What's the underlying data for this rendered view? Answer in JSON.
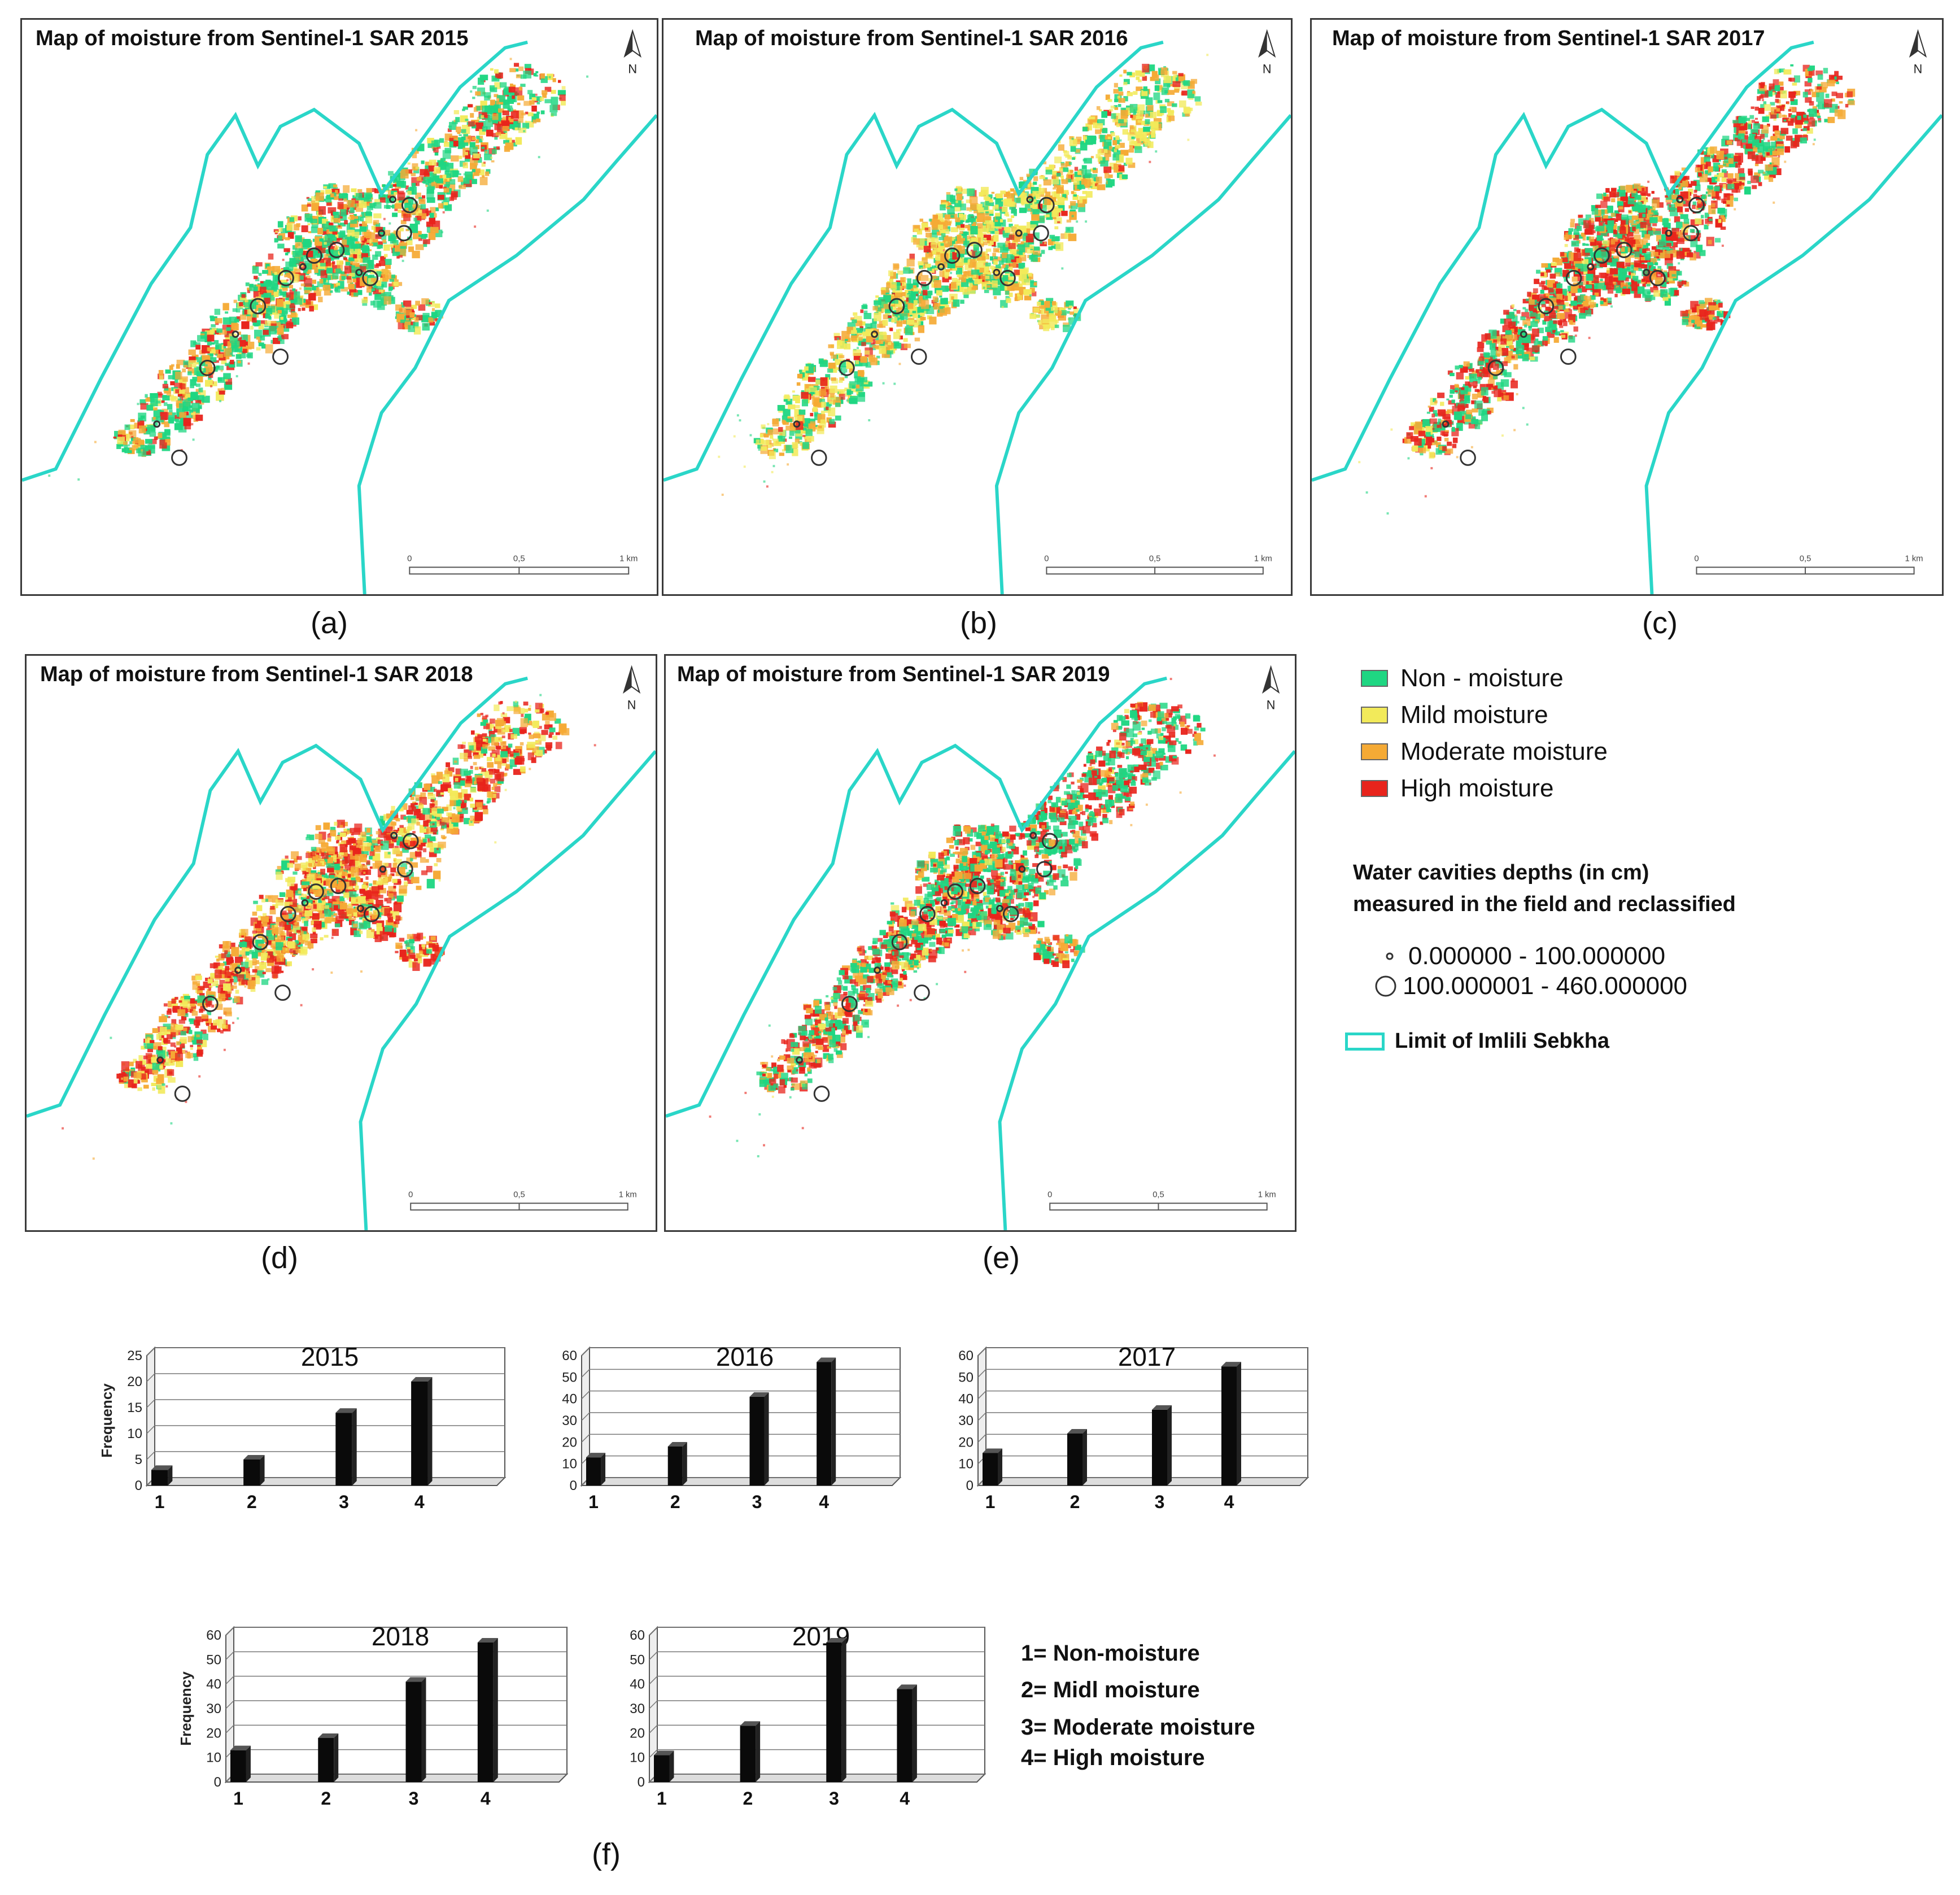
{
  "maps": [
    {
      "title": "Map of moisture from Sentinel-1 SAR 2015",
      "panel_label": "(a)",
      "year": "2015"
    },
    {
      "title": "Map of moisture from Sentinel-1 SAR 2016",
      "panel_label": "(b)",
      "year": "2016"
    },
    {
      "title": "Map of moisture from Sentinel-1 SAR 2017",
      "panel_label": "(c)",
      "year": "2017"
    },
    {
      "title": "Map of moisture from Sentinel-1 SAR 2018",
      "panel_label": "(d)",
      "year": "2018"
    },
    {
      "title": "Map of moisture from Sentinel-1 SAR 2019",
      "panel_label": "(e)",
      "year": "2019"
    }
  ],
  "north_label": "N",
  "scale": {
    "tick0": "0",
    "tick1": "0,5",
    "tick2": "1 km"
  },
  "legend": {
    "classes": [
      {
        "label": "Non - moisture",
        "color": "#1fd682"
      },
      {
        "label": "Mild moisture",
        "color": "#f2ea5a"
      },
      {
        "label": "Moderate moisture",
        "color": "#f5aa35"
      },
      {
        "label": "High moisture",
        "color": "#e8241c"
      }
    ],
    "cavities_heading_1": "Water cavities depths  (in cm)",
    "cavities_heading_2": "measured in the field and reclassified",
    "cavity_small": "0.000000 - 100.000000",
    "cavity_large": "100.000001 - 460.000000",
    "limit_label": "Limit of Imlili Sebkha",
    "limit_color": "#2ad6c8"
  },
  "colors": {
    "non": "#1fd682",
    "mild": "#f2ea5a",
    "moderate": "#f5aa35",
    "high": "#e8241c",
    "limit": "#2ad6c8"
  },
  "chart_data": [
    {
      "type": "bar",
      "title": "2015",
      "ylabel": "Frequency",
      "categories": [
        "1",
        "2",
        "3",
        "4"
      ],
      "values": [
        3,
        5,
        14,
        20
      ],
      "ylim": [
        0,
        25
      ],
      "yticks": [
        0,
        5,
        10,
        15,
        20,
        25
      ]
    },
    {
      "type": "bar",
      "title": "2016",
      "ylabel": "",
      "categories": [
        "1",
        "2",
        "3",
        "4"
      ],
      "values": [
        13,
        18,
        41,
        57
      ],
      "ylim": [
        0,
        60
      ],
      "yticks": [
        0,
        10,
        20,
        30,
        40,
        50,
        60
      ]
    },
    {
      "type": "bar",
      "title": "2017",
      "ylabel": "",
      "categories": [
        "1",
        "2",
        "3",
        "4"
      ],
      "values": [
        15,
        24,
        35,
        55
      ],
      "ylim": [
        0,
        60
      ],
      "yticks": [
        0,
        10,
        20,
        30,
        40,
        50,
        60
      ]
    },
    {
      "type": "bar",
      "title": "2018",
      "ylabel": "Frequency",
      "categories": [
        "1",
        "2",
        "3",
        "4"
      ],
      "values": [
        13,
        18,
        41,
        57
      ],
      "ylim": [
        0,
        60
      ],
      "yticks": [
        0,
        10,
        20,
        30,
        40,
        50,
        60
      ]
    },
    {
      "type": "bar",
      "title": "2019",
      "ylabel": "",
      "categories": [
        "1",
        "2",
        "3",
        "4"
      ],
      "values": [
        11,
        23,
        57,
        38
      ],
      "ylim": [
        0,
        60
      ],
      "yticks": [
        0,
        10,
        20,
        30,
        40,
        50,
        60
      ]
    }
  ],
  "category_notes": [
    "1= Non-moisture",
    "2= Midl moisture",
    "3= Moderate moisture",
    "4= High moisture"
  ],
  "f_label": "(f)"
}
